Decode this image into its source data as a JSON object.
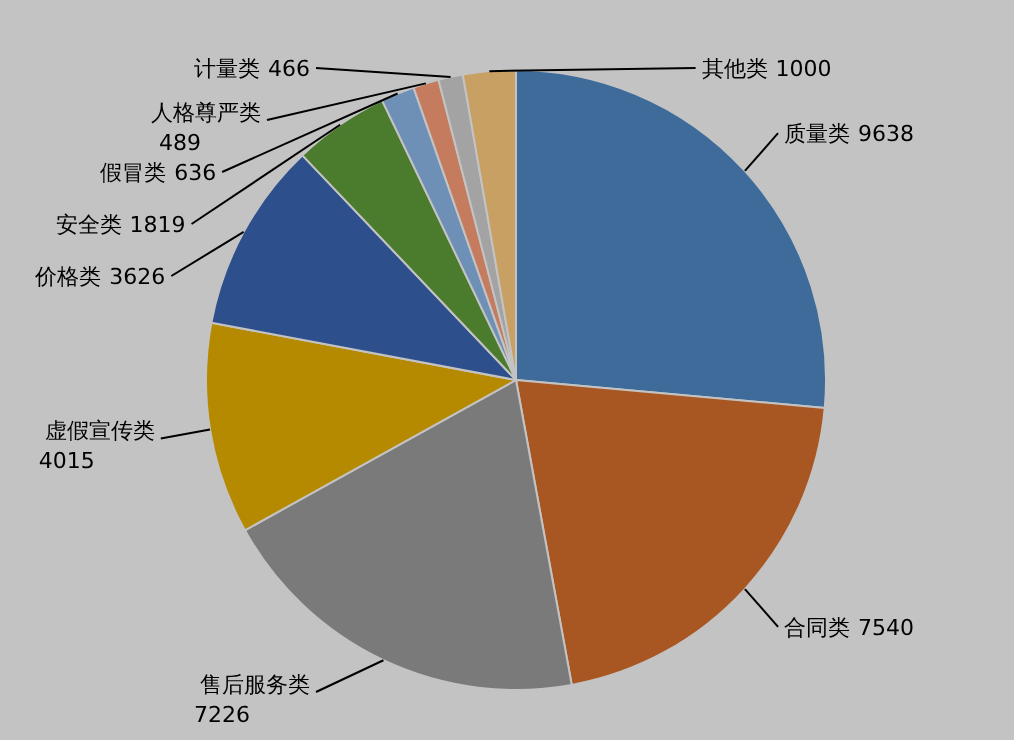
{
  "chart_data": {
    "type": "pie",
    "categories": [
      "质量类",
      "合同类",
      "售后服务类",
      "虚假宣传类",
      "价格类",
      "安全类",
      "假冒类",
      "人格尊严类",
      "计量类",
      "其他类"
    ],
    "values": [
      9638,
      7540,
      7226,
      4015,
      3626,
      1819,
      636,
      489,
      466,
      1000
    ],
    "colors": [
      "#3e6b99",
      "#a85622",
      "#7a7a7a",
      "#b58a00",
      "#2d4f8c",
      "#4b7c2e",
      "#6f90b6",
      "#c57b5d",
      "#a3a3a3",
      "#c8a064"
    ],
    "data_labels": true,
    "legend": false
  }
}
